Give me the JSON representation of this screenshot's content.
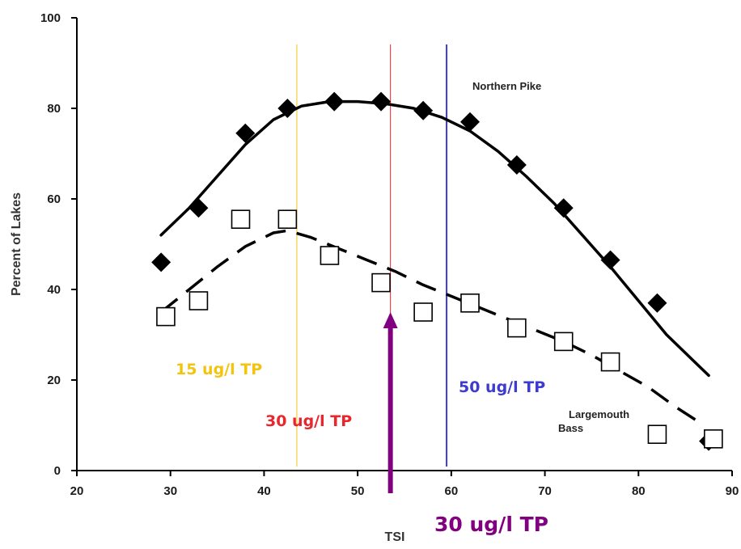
{
  "chart_data": {
    "type": "scatter",
    "ylabel": "Percent of Lakes",
    "xlabel": "TSI",
    "xlim": [
      20,
      90
    ],
    "ylim": [
      0,
      100
    ],
    "x_ticks": [
      "20",
      "30",
      "40",
      "50",
      "60",
      "70",
      "80",
      "90"
    ],
    "y_ticks": [
      "0",
      "20",
      "40",
      "60",
      "80",
      "100"
    ],
    "grid": false,
    "series": [
      {
        "name": "Northern Pike",
        "marker": "filled-diamond",
        "color": "#000000",
        "x": [
          29,
          33,
          38,
          42.5,
          47.5,
          52.5,
          57,
          62,
          67,
          72,
          77,
          82,
          87.5
        ],
        "y": [
          46,
          58,
          74.5,
          80,
          81.5,
          81.5,
          79.5,
          77,
          67.5,
          58,
          46.5,
          37,
          6.5
        ]
      },
      {
        "name": "Largemouth Bass",
        "marker": "open-square",
        "color": "#000000",
        "x": [
          29.5,
          33,
          37.5,
          42.5,
          47,
          52.5,
          57,
          62,
          67,
          72,
          77,
          82,
          88
        ],
        "y": [
          34,
          37.5,
          55.5,
          55.5,
          47.5,
          41.5,
          35,
          37,
          31.5,
          28.5,
          24,
          8,
          7
        ]
      }
    ],
    "fit_curves": [
      {
        "series": "Northern Pike",
        "style": "solid",
        "x": [
          29,
          32,
          35,
          38,
          41,
          44,
          47,
          50,
          53,
          56,
          59,
          62,
          65,
          68,
          71,
          74,
          77,
          80,
          83,
          86,
          87.5
        ],
        "y": [
          52,
          58,
          65,
          72,
          77.5,
          80.5,
          81.5,
          81.5,
          81,
          80,
          78,
          75,
          70.5,
          65,
          59,
          52,
          45,
          37.5,
          30,
          24,
          21
        ]
      },
      {
        "series": "Largemouth Bass",
        "style": "dashed",
        "x": [
          29,
          32,
          35,
          38,
          41,
          42.5,
          45,
          48,
          51,
          54,
          57,
          60,
          63,
          66,
          69,
          72,
          75,
          78,
          81,
          84,
          87
        ],
        "y": [
          35,
          40,
          45,
          49.5,
          52.5,
          53,
          51.5,
          49,
          46.5,
          44,
          41,
          38.5,
          36,
          33.5,
          31,
          28.5,
          25.5,
          22,
          18.5,
          14,
          10
        ]
      }
    ],
    "reference_lines": [
      {
        "x": 43.5,
        "color": "#f2c40f",
        "label": "15 ug/l TP"
      },
      {
        "x": 53.5,
        "color": "#e8262c",
        "label": "30 ug/l TP"
      },
      {
        "x": 59.5,
        "color": "#3d3bd0",
        "label": "50 ug/l TP"
      }
    ],
    "annotations": {
      "northern_pike": "Northern Pike",
      "largemouth_line1": "Largemouth",
      "largemouth_line2": "Bass",
      "arrow": {
        "x": 53.5,
        "from_y": -5,
        "to_y": 35,
        "color": "#800080",
        "label": "30 ug/l TP"
      }
    }
  }
}
